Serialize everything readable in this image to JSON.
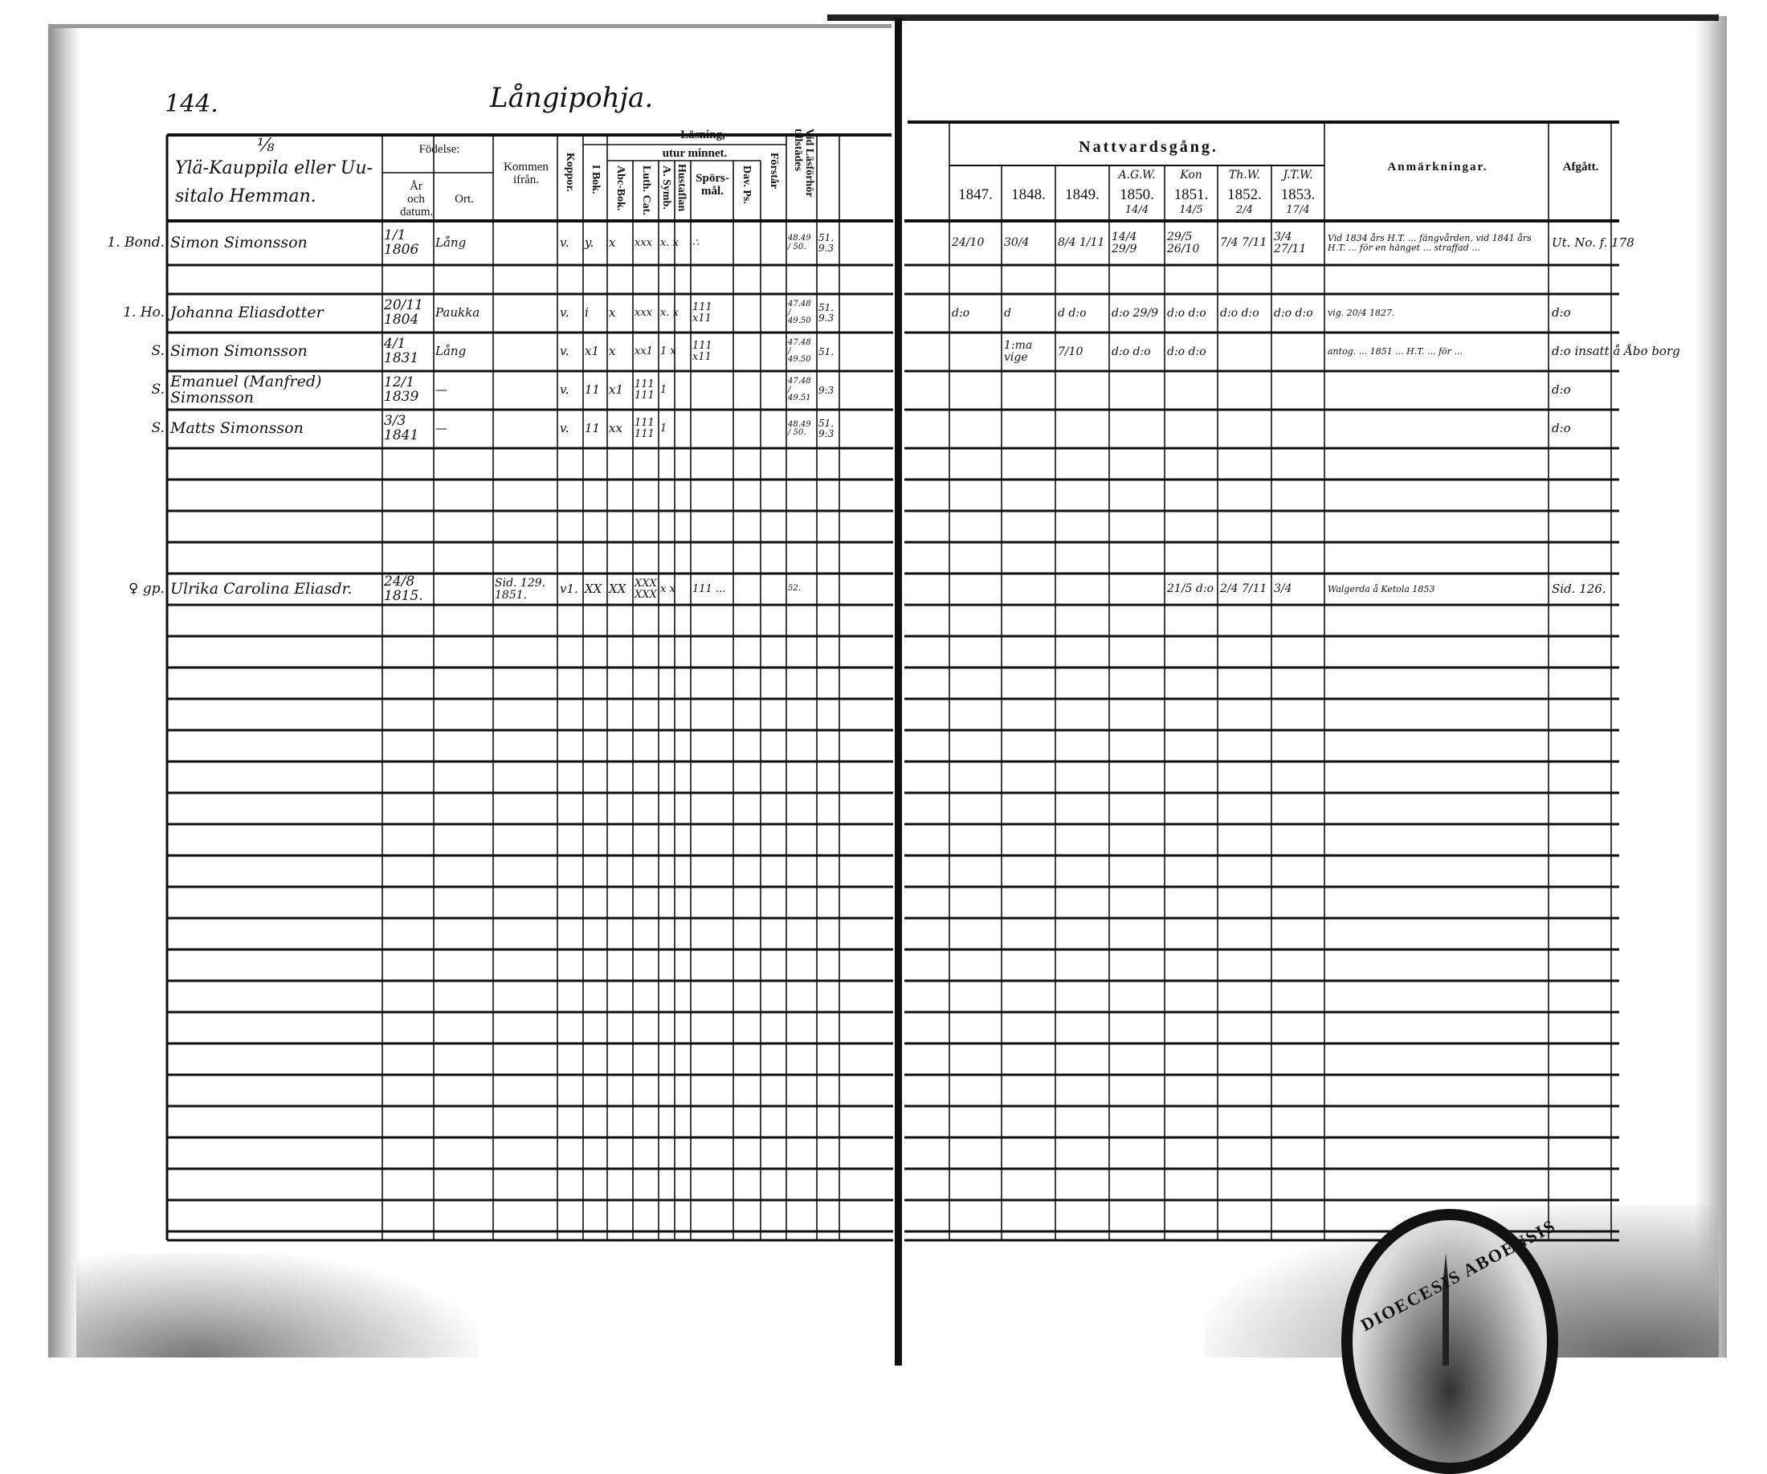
{
  "page": {
    "page_number": "144.",
    "village": "Långipohja.",
    "farm_fraction": "⅛",
    "farm_name_line1": "Ylä-Kauppila eller Uu-",
    "farm_name_line2": "sitalo Hemman."
  },
  "left_headers": {
    "fodelse": "Födelse:",
    "ar_och_datum": "År och datum.",
    "ort": "Ort.",
    "kommen_ifran": "Kommen ifrån.",
    "koppor": "Koppor.",
    "lasning": "Läsning,",
    "i_bok": "I Bok.",
    "utur_minnet": "utur minnet.",
    "abc_bok": "Abc-Bok.",
    "luth_cat": "Luth. Cat.",
    "a_symb": "A. Symb.",
    "hustaflan": "Hustaflan",
    "sporsmal": "Spörs-mål.",
    "dav_ps": "Dav. Ps.",
    "forstar": "Förstår",
    "vid_lasforhor": "Vid Läsförhör tillstädes"
  },
  "right_headers": {
    "nattvardsgang": "Nattvardsgång.",
    "years": [
      {
        "top": "",
        "year": "1847.",
        "date": ""
      },
      {
        "top": "",
        "year": "1848.",
        "date": ""
      },
      {
        "top": "",
        "year": "1849.",
        "date": ""
      },
      {
        "top": "A.G.W.",
        "year": "1850.",
        "date": "14/4"
      },
      {
        "top": "Kon",
        "year": "1851.",
        "date": "14/5"
      },
      {
        "top": "Th.W.",
        "year": "1852.",
        "date": "2/4"
      },
      {
        "top": "J.T.W.",
        "year": "1853.",
        "date": "17/4"
      }
    ],
    "anmarkningar": "Anmärkningar.",
    "afgatt": "Afgått."
  },
  "rows": [
    {
      "role": "1. Bond.",
      "name": "Simon Simonsson",
      "birth": "1/1 1806",
      "ort": "Lång",
      "kommen": "",
      "koppor": "v.",
      "ibok": "y.",
      "abc": "x",
      "luth": "xxx",
      "symb": "x. x",
      "spors": "∴",
      "dav": "",
      "forstar": "",
      "lasforhor": "48.49 / 50.",
      "lasforhor2": "51. 9.3",
      "n1847": "24/10",
      "n1848": "30/4",
      "n1849": "8/4 1/11",
      "n1850": "14/4 29/9",
      "n1851": "29/5 26/10",
      "n1852": "7/4 7/11",
      "n1853": "3/4 27/11",
      "anm": "Vid 1834 års H.T. ... fängvården, vid 1841 års H.T. ... för en hänget ... straffad ... ",
      "afgatt": "Ut. No. f. 178"
    },
    {
      "role": "1. Ho.",
      "name": "Johanna Eliasdotter",
      "birth": "20/11 1804",
      "ort": "Paukka",
      "kommen": "",
      "koppor": "v.",
      "ibok": "i",
      "abc": "x",
      "luth": "xxx",
      "symb": "x. x",
      "spors": "111 x11",
      "dav": "",
      "forstar": "",
      "lasforhor": "47.48 / 49.50",
      "lasforhor2": "51. 9.3",
      "n1847": "d:o",
      "n1848": "d",
      "n1849": "d d:o",
      "n1850": "d:o 29/9",
      "n1851": "d:o d:o",
      "n1852": "d:o d:o",
      "n1853": "d:o d:o",
      "anm": "vig. 20/4 1827.",
      "afgatt": "d:o"
    },
    {
      "role": "S.",
      "name": "Simon Simonsson",
      "birth": "4/1 1831",
      "ort": "Lång",
      "kommen": "",
      "koppor": "v.",
      "ibok": "x1",
      "abc": "x",
      "luth": "xx1",
      "symb": "1 x",
      "spors": "111 x11",
      "dav": "",
      "forstar": "",
      "lasforhor": "47.48 / 49.50",
      "lasforhor2": "51.",
      "n1847": "",
      "n1848": "1:ma vige",
      "n1849": "7/10",
      "n1850": "d:o d:o",
      "n1851": "d:o d:o",
      "n1852": "",
      "n1853": "",
      "anm": "antog. ... 1851 ... H.T. ... för ...",
      "afgatt": "d:o insatt å Åbo borg"
    },
    {
      "role": "S.",
      "name": "Emanuel (Manfred) Simonsson",
      "birth": "12/1 1839",
      "ort": "—",
      "kommen": "",
      "koppor": "v.",
      "ibok": "11",
      "abc": "x1",
      "luth": "111 111",
      "symb": "1",
      "spors": "",
      "dav": "",
      "forstar": "",
      "lasforhor": "47.48 / 49.51",
      "lasforhor2": "9:3",
      "n1847": "",
      "n1848": "",
      "n1849": "",
      "n1850": "",
      "n1851": "",
      "n1852": "",
      "n1853": "",
      "anm": "",
      "afgatt": "d:o"
    },
    {
      "role": "S.",
      "name": "Matts Simonsson",
      "birth": "3/3 1841",
      "ort": "—",
      "kommen": "",
      "koppor": "v.",
      "ibok": "11",
      "abc": "xx",
      "luth": "111 111",
      "symb": "1",
      "spors": "",
      "dav": "",
      "forstar": "",
      "lasforhor": "48.49 / 50.",
      "lasforhor2": "51. 9:3",
      "n1847": "",
      "n1848": "",
      "n1849": "",
      "n1850": "",
      "n1851": "",
      "n1852": "",
      "n1853": "",
      "anm": "",
      "afgatt": "d:o"
    },
    {
      "role": "♀ gp.",
      "name": "Ulrika Carolina Eliasdr.",
      "birth": "24/8 1815.",
      "ort": "",
      "kommen": "Sid. 129. 1851.",
      "koppor": "v1.",
      "ibok": "XX",
      "abc": "XX",
      "luth": "XXX XXX",
      "symb": "x x",
      "spors": "111 ...",
      "dav": "",
      "forstar": "",
      "lasforhor": "52.",
      "lasforhor2": "",
      "n1847": "",
      "n1848": "",
      "n1849": "",
      "n1850": "",
      "n1851": "21/5 d:o",
      "n1852": "2/4 7/11",
      "n1853": "3/4",
      "anm": "Walgerda å Ketola 1853",
      "afgatt": "Sid. 126."
    }
  ],
  "stamp": {
    "text": "DIOECESIS ABOENSIS"
  }
}
